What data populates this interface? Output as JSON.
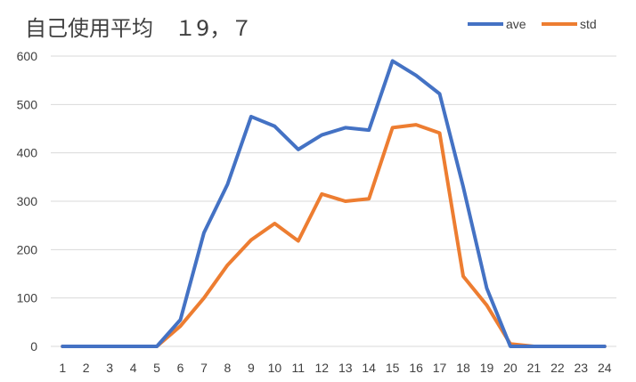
{
  "chart_data": {
    "type": "line",
    "title": "自己使用平均　１9，７",
    "xlabel": "",
    "ylabel": "",
    "categories": [
      "1",
      "2",
      "3",
      "4",
      "5",
      "6",
      "7",
      "8",
      "9",
      "10",
      "11",
      "12",
      "13",
      "14",
      "15",
      "16",
      "17",
      "18",
      "19",
      "20",
      "21",
      "22",
      "23",
      "24"
    ],
    "ylim": [
      0,
      600
    ],
    "yticks": [
      0,
      100,
      200,
      300,
      400,
      500,
      600
    ],
    "grid": true,
    "legend_position": "top-right",
    "series": [
      {
        "name": "ave",
        "color": "#4472c4",
        "values": [
          0,
          0,
          0,
          0,
          0,
          55,
          235,
          335,
          475,
          455,
          407,
          437,
          452,
          447,
          590,
          560,
          522,
          330,
          120,
          0,
          0,
          0,
          0,
          0
        ]
      },
      {
        "name": "std",
        "color": "#ed7d31",
        "values": [
          0,
          0,
          0,
          0,
          0,
          42,
          100,
          168,
          220,
          254,
          218,
          315,
          300,
          305,
          452,
          458,
          441,
          145,
          85,
          5,
          0,
          0,
          0,
          0
        ]
      }
    ]
  }
}
